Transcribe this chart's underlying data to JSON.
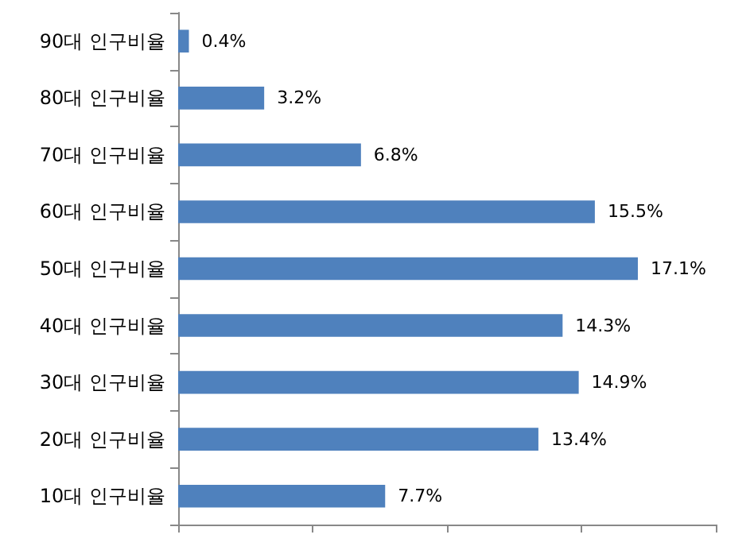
{
  "chart_data": {
    "type": "bar",
    "orientation": "horizontal",
    "categories": [
      "90대 인구비율",
      "80대 인구비율",
      "70대 인구비율",
      "60대 인구비율",
      "50대 인구비율",
      "40대 인구비율",
      "30대 인구비율",
      "20대 인구비율",
      "10대 인구비율"
    ],
    "values": [
      0.4,
      3.2,
      6.8,
      15.5,
      17.1,
      14.3,
      14.9,
      13.4,
      7.7
    ],
    "value_labels": [
      "0.4%",
      "3.2%",
      "6.8%",
      "15.5%",
      "17.1%",
      "14.3%",
      "14.9%",
      "13.4%",
      "7.7%"
    ],
    "color": "#4f81bd",
    "xlim": [
      0,
      20
    ],
    "xticks": [
      {
        "value": 0,
        "label": null
      },
      {
        "value": 5,
        "label": null
      },
      {
        "value": 10,
        "label": null
      },
      {
        "value": 15,
        "label": null
      },
      {
        "value": 20,
        "label": null
      }
    ],
    "tick_labels": "y",
    "grid": false
  }
}
